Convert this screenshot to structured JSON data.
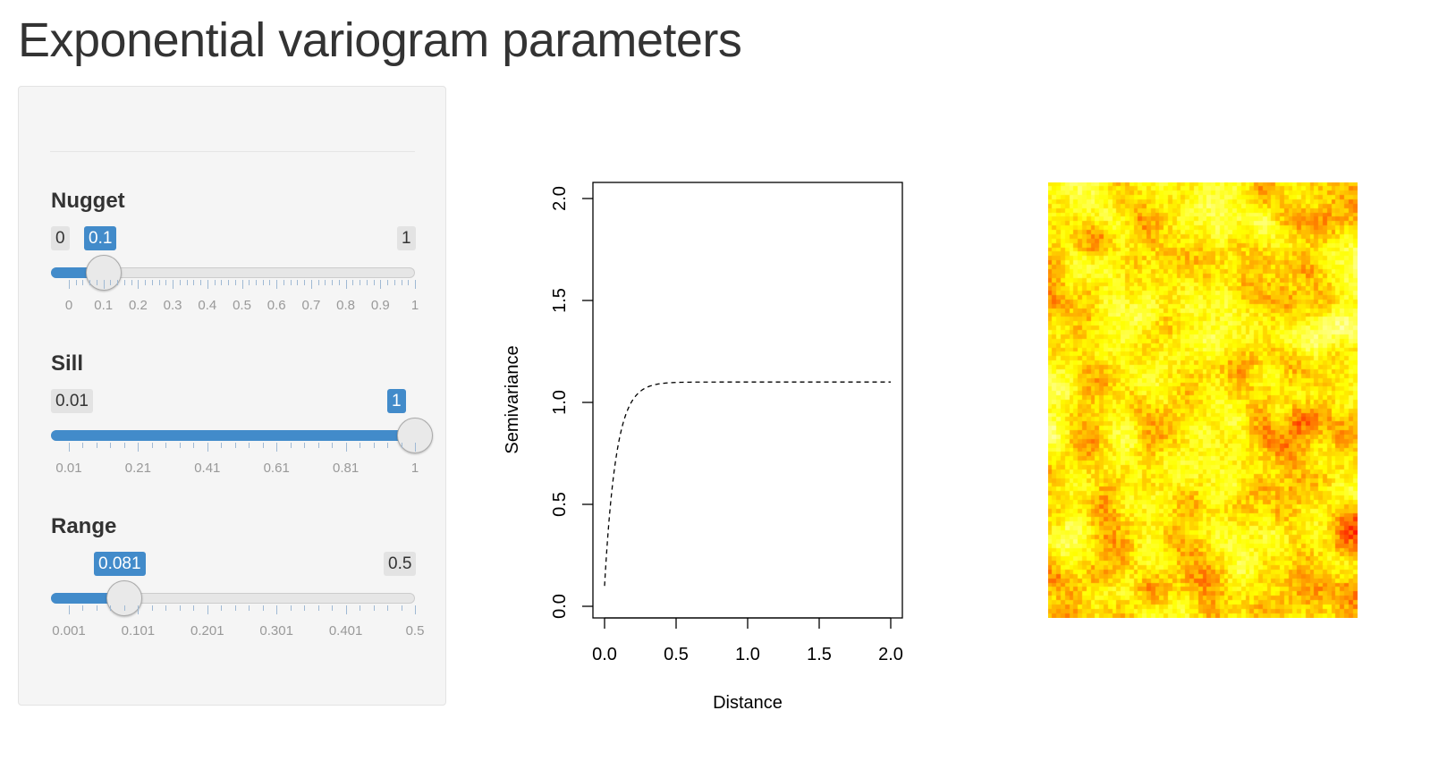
{
  "page": {
    "title": "Exponential variogram parameters"
  },
  "sliders": {
    "nugget": {
      "label": "Nugget",
      "min": 0,
      "max": 1,
      "value": 0.1,
      "min_label": "0",
      "max_label": "1",
      "value_label": "0.1",
      "tick_labels": [
        "0",
        "0.1",
        "0.2",
        "0.3",
        "0.4",
        "0.5",
        "0.6",
        "0.7",
        "0.8",
        "0.9",
        "1"
      ],
      "minor_ticks": 4
    },
    "sill": {
      "label": "Sill",
      "min": 0.01,
      "max": 1,
      "value": 1,
      "min_label": "0.01",
      "max_label": "1",
      "value_label": "1",
      "tick_labels": [
        "0.01",
        "0.21",
        "0.41",
        "0.61",
        "0.81",
        "1"
      ],
      "minor_ticks": 4
    },
    "range": {
      "label": "Range",
      "min": 0.001,
      "max": 0.5,
      "value": 0.081,
      "min_label": "0.001",
      "max_label": "0.5",
      "value_label": "0.081",
      "tick_labels": [
        "0.001",
        "0.101",
        "0.201",
        "0.301",
        "0.401",
        "0.5"
      ],
      "minor_ticks": 4
    }
  },
  "chart_data": {
    "type": "line",
    "model": "exponential",
    "nugget": 0.1,
    "sill": 1,
    "range": 0.081,
    "x": [
      0,
      0.025,
      0.05,
      0.1,
      0.15,
      0.2,
      0.25,
      0.3,
      0.5,
      1.0,
      1.5,
      2.0
    ],
    "y": [
      0.1,
      0.368,
      0.555,
      0.773,
      0.886,
      0.944,
      0.975,
      0.986,
      0.998,
      1.1,
      1.1,
      1.1
    ],
    "xlim": [
      0,
      2
    ],
    "ylim": [
      0,
      2
    ],
    "xticks": [
      "0.0",
      "0.5",
      "1.0",
      "1.5",
      "2.0"
    ],
    "yticks": [
      "0.0",
      "0.5",
      "1.0",
      "1.5",
      "2.0"
    ],
    "xlabel": "Distance",
    "ylabel": "Semivariance",
    "line_style": "dashed",
    "line_color": "#000000"
  },
  "heatmap": {
    "cols": 72,
    "rows": 100,
    "colors": [
      "#ff0000",
      "#ff8000",
      "#ffff00",
      "#ffffaa"
    ]
  },
  "colors": {
    "accent": "#428bca",
    "panel_bg": "#f5f5f5"
  }
}
